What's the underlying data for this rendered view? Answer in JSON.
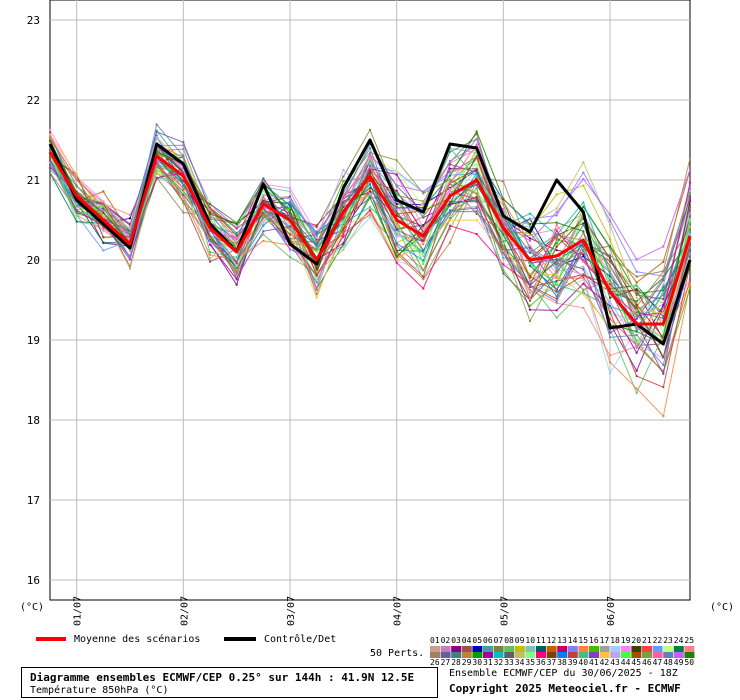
{
  "chart_data": {
    "type": "line",
    "yunit_left": "(°C)",
    "yunit_right": "(°C)",
    "ylim": [
      15.75,
      23.25
    ],
    "yticks": [
      "16",
      "17",
      "18",
      "19",
      "20",
      "21",
      "22",
      "23"
    ],
    "xticks": [
      "01/07",
      "02/07",
      "03/07",
      "04/07",
      "05/07",
      "06/07"
    ],
    "x_hours": [
      0,
      6,
      12,
      18,
      24,
      30,
      36,
      42,
      48,
      54,
      60,
      66,
      72,
      78,
      84,
      90,
      96,
      102,
      108,
      114,
      120,
      126,
      132,
      138,
      144
    ],
    "grid": true,
    "series": [
      {
        "name": "Moyenne des scénarios",
        "color": "#ff0000",
        "values": [
          21.35,
          20.8,
          20.5,
          20.2,
          21.3,
          21.05,
          20.4,
          20.1,
          20.7,
          20.5,
          20.0,
          20.6,
          21.05,
          20.5,
          20.3,
          20.8,
          21.0,
          20.4,
          20.0,
          20.05,
          20.25,
          19.6,
          19.2,
          19.2,
          20.3
        ]
      },
      {
        "name": "Contrôle/Det",
        "color": "#000000",
        "values": [
          21.45,
          20.75,
          20.45,
          20.15,
          21.45,
          21.2,
          20.45,
          20.1,
          20.95,
          20.2,
          19.95,
          20.9,
          21.5,
          20.75,
          20.6,
          21.45,
          21.4,
          20.55,
          20.35,
          21.0,
          20.6,
          19.15,
          19.2,
          18.95,
          20.0
        ]
      }
    ],
    "perturbations_label": "50 Perts.",
    "perturbation_ids": [
      "01",
      "02",
      "03",
      "04",
      "05",
      "06",
      "07",
      "08",
      "09",
      "10",
      "11",
      "12",
      "13",
      "14",
      "15",
      "16",
      "17",
      "18",
      "19",
      "20",
      "21",
      "22",
      "23",
      "24",
      "25",
      "26",
      "27",
      "28",
      "29",
      "30",
      "31",
      "32",
      "33",
      "34",
      "35",
      "36",
      "37",
      "38",
      "39",
      "40",
      "41",
      "42",
      "43",
      "44",
      "45",
      "46",
      "47",
      "48",
      "49",
      "50"
    ],
    "perturbation_colors": [
      "#c8a08c",
      "#c080c0",
      "#8c0080",
      "#a05050",
      "#0000c0",
      "#40a0a0",
      "#808040",
      "#60c060",
      "#c0c000",
      "#80c0c0",
      "#006060",
      "#c06000",
      "#c00060",
      "#8080ff",
      "#ff8040",
      "#40c000",
      "#a0a0a0",
      "#a0d0ff",
      "#ff80ff",
      "#404000",
      "#ff4040",
      "#60a0ff",
      "#c0ff80",
      "#008040",
      "#ff8080",
      "#a08060",
      "#6060a0",
      "#408080",
      "#c08040",
      "#00a000",
      "#a000a0",
      "#00c0c0",
      "#606060",
      "#c0c060",
      "#80ff80",
      "#ff0080",
      "#804000",
      "#0080ff",
      "#c04040",
      "#40c080",
      "#8040c0",
      "#ffc040",
      "#c0a0ff",
      "#40ff40",
      "#a05000",
      "#80a040",
      "#ff60a0",
      "#6080c0",
      "#c060ff",
      "#208000"
    ]
  },
  "legend": {
    "mean_label": "Moyenne des scénarios",
    "det_label": "Contrôle/Det"
  },
  "footer": {
    "title": "Diagramme ensembles ECMWF/CEP 0.25° sur 144h : 41.9N 12.5E",
    "subtitle": "Température 850hPa (°C)",
    "run": "Ensemble ECMWF/CEP du 30/06/2025 - 18Z",
    "copyright": "Copyright 2025 Meteociel.fr - ECMWF"
  }
}
